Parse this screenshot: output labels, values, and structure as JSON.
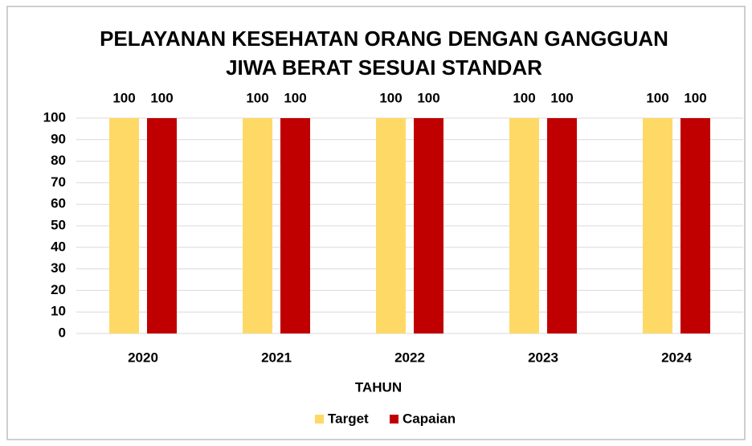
{
  "chart_data": {
    "type": "bar",
    "title": [
      "PELAYANAN KESEHATAN ORANG DENGAN GANGGUAN",
      "JIWA BERAT SESUAI STANDAR"
    ],
    "x_label": "TAHUN",
    "categories": [
      "2020",
      "2021",
      "2022",
      "2023",
      "2024"
    ],
    "series": [
      {
        "name": "Target",
        "color": "#ffd966",
        "values": [
          100,
          100,
          100,
          100,
          100
        ]
      },
      {
        "name": "Capaian",
        "color": "#c00000",
        "values": [
          100,
          100,
          100,
          100,
          100
        ]
      }
    ],
    "ylim": [
      0,
      100
    ],
    "yticks": [
      0,
      10,
      20,
      30,
      40,
      50,
      60,
      70,
      80,
      90,
      100
    ],
    "grid": true,
    "legend": "bottom"
  }
}
